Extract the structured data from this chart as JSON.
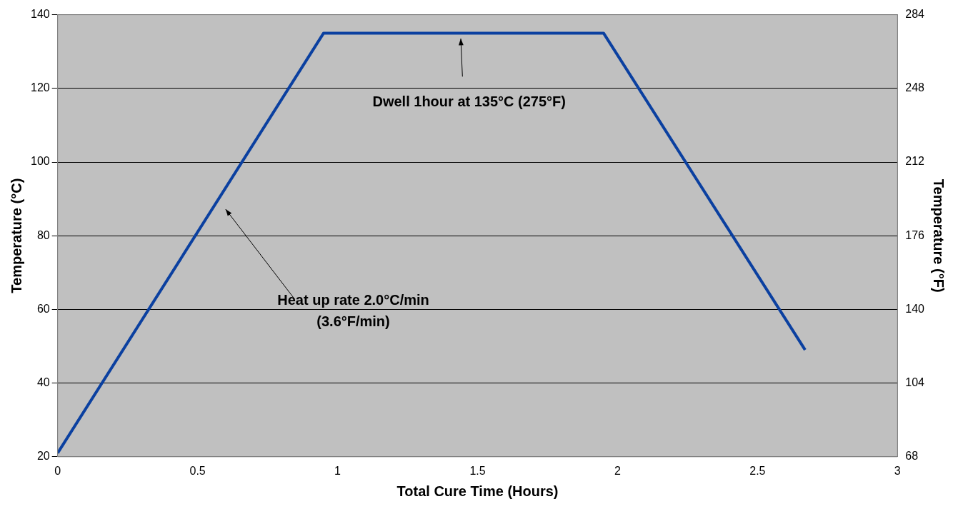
{
  "chart_data": {
    "type": "line",
    "xlabel": "Total Cure Time (Hours)",
    "ylabel": "Temperature (°C)",
    "y2label": "Temperature (°F)",
    "series": [
      {
        "color": "#0b40a0",
        "x": [
          0,
          0.95,
          1.95,
          2.67
        ],
        "values": [
          21,
          135,
          135,
          49
        ]
      }
    ],
    "xlim": [
      0,
      3
    ],
    "xticks": [
      0,
      0.5,
      1,
      1.5,
      2,
      2.5,
      3
    ],
    "ylim": [
      20,
      140
    ],
    "yticks": [
      20,
      40,
      60,
      80,
      100,
      120,
      140
    ],
    "y2lim": [
      68,
      284
    ],
    "y2ticks": [
      68,
      104,
      140,
      176,
      212,
      248,
      284
    ],
    "grid": "y",
    "legend": false,
    "marker": "none",
    "line_style": "solid",
    "annotations": [
      "Dwell 1hour at 135°C (275°F)",
      "Heat up rate 2.0°C/min\n(3.6°F/min)"
    ]
  }
}
